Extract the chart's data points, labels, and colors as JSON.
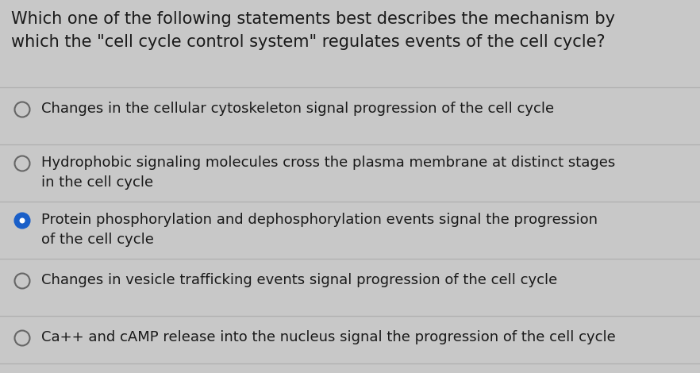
{
  "background_color": "#c8c8c8",
  "question_line1": "Which one of the following statements best describes the mechanism by",
  "question_line2": "which the \"cell cycle control system\" regulates events of the cell cycle?",
  "question_fontsize": 15.0,
  "question_color": "#1a1a1a",
  "options": [
    {
      "text": "Changes in the cellular cytoskeleton signal progression of the cell cycle",
      "selected": false
    },
    {
      "text": "Hydrophobic signaling molecules cross the plasma membrane at distinct stages\nin the cell cycle",
      "selected": false
    },
    {
      "text": "Protein phosphorylation and dephosphorylation events signal the progression\nof the cell cycle",
      "selected": true
    },
    {
      "text": "Changes in vesicle trafficking events signal progression of the cell cycle",
      "selected": false
    },
    {
      "text": "Ca++ and cAMP release into the nucleus signal the progression of the cell cycle",
      "selected": false
    }
  ],
  "option_fontsize": 13.0,
  "option_color": "#1a1a1a",
  "radio_unselected_edge": "#666666",
  "radio_selected_fill": "#1a5fc8",
  "radio_selected_edge": "#1a5fc8",
  "divider_color": "#b0b0b0",
  "divider_linewidth": 0.9
}
